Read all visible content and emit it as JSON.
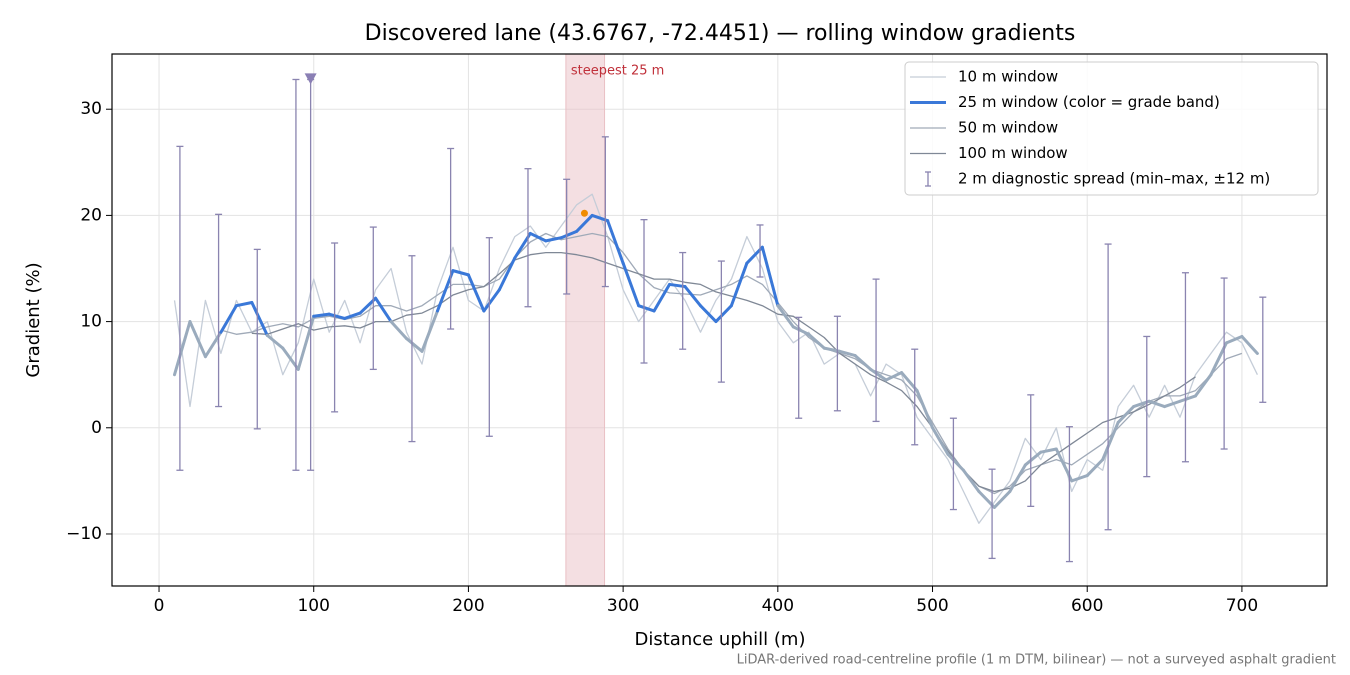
{
  "chart_data": {
    "type": "line",
    "title": "Discovered lane (43.6767, -72.4451) — rolling window gradients",
    "xlabel": "Distance uphill (m)",
    "ylabel": "Gradient (%)",
    "footnote": "LiDAR-derived road-centreline profile (1 m DTM, bilinear) — not a surveyed asphalt gradient",
    "xlim": [
      -30.4,
      755
    ],
    "ylim": [
      -14.9,
      35.2
    ],
    "xticks": [
      0,
      100,
      200,
      300,
      400,
      500,
      600,
      700
    ],
    "yticks": [
      {
        "value": -10,
        "label": "−10"
      },
      0,
      10,
      20,
      30
    ],
    "grid": true,
    "legend": "upper right",
    "x": [
      10,
      20,
      30,
      40,
      50,
      60,
      70,
      80,
      90,
      100,
      110,
      120,
      130,
      140,
      150,
      160,
      170,
      180,
      190,
      200,
      210,
      220,
      230,
      240,
      250,
      260,
      270,
      280,
      290,
      300,
      310,
      320,
      330,
      340,
      350,
      360,
      370,
      380,
      390,
      400,
      410,
      420,
      430,
      440,
      450,
      460,
      470,
      480,
      490,
      500,
      510,
      520,
      530,
      540,
      550,
      560,
      570,
      580,
      590,
      600,
      610,
      620,
      630,
      640,
      650,
      660,
      670,
      680,
      690,
      700,
      710
    ],
    "series": [
      {
        "name": "10 m window",
        "color": "#c5cdd8",
        "values": [
          12,
          2,
          12,
          7,
          12,
          9,
          10,
          5,
          8,
          14,
          9,
          12,
          8,
          13,
          15,
          9,
          6,
          13,
          17,
          12,
          11,
          15,
          18,
          19,
          17,
          19,
          21,
          22,
          18,
          13,
          10,
          12,
          14,
          12,
          9,
          12,
          14,
          18,
          15,
          10,
          8,
          9,
          6,
          7,
          6,
          3,
          6,
          5,
          1,
          -1,
          -3,
          -6,
          -9,
          -7,
          -5,
          -1,
          -3,
          0,
          -6,
          -3,
          -4,
          2,
          4,
          1,
          4,
          1,
          5,
          7,
          9,
          8,
          5
        ]
      },
      {
        "name": "25 m window (color = grade band)",
        "color": "#3a78d8",
        "values": [
          5,
          10,
          6.7,
          9,
          11.5,
          11.8,
          8.7,
          7.5,
          5.5,
          10.5,
          10.7,
          10.3,
          10.8,
          12.2,
          10,
          8.4,
          7.2,
          11,
          14.8,
          14.4,
          11,
          13,
          16,
          18.3,
          17.6,
          17.9,
          18.5,
          20,
          19.5,
          15.5,
          11.5,
          11,
          13.5,
          13.3,
          11.5,
          10,
          11.5,
          15.5,
          17,
          11.5,
          9.5,
          8.8,
          7.5,
          7.2,
          6.8,
          5.5,
          4.5,
          5.2,
          3.5,
          0,
          -2.5,
          -4,
          -6,
          -7.5,
          -6,
          -3.5,
          -2.3,
          -2,
          -5,
          -4.5,
          -3,
          0.5,
          2,
          2.5,
          2,
          2.5,
          3,
          5,
          8,
          8.6,
          7
        ],
        "colors": [
          "#9aabbd",
          "#9aabbd",
          "#9aabbd",
          "#3a78d8",
          "#3a78d8",
          "#3a78d8",
          "#9aabbd",
          "#9aabbd",
          "#9aabbd",
          "#3a78d8",
          "#3a78d8",
          "#3a78d8",
          "#3a78d8",
          "#3a78d8",
          "#9aabbd",
          "#9aabbd",
          "#9aabbd",
          "#3a78d8",
          "#3a78d8",
          "#3a78d8",
          "#3a78d8",
          "#3a78d8",
          "#3a78d8",
          "#3a78d8",
          "#3a78d8",
          "#3a78d8",
          "#3a78d8",
          "#3a78d8",
          "#3a78d8",
          "#3a78d8",
          "#3a78d8",
          "#3a78d8",
          "#3a78d8",
          "#3a78d8",
          "#3a78d8",
          "#3a78d8",
          "#3a78d8",
          "#3a78d8",
          "#3a78d8",
          "#9aabbd",
          "#9aabbd",
          "#9aabbd",
          "#9aabbd",
          "#9aabbd",
          "#9aabbd",
          "#9aabbd",
          "#9aabbd",
          "#9aabbd",
          "#9aabbd",
          "#9aabbd",
          "#9aabbd",
          "#9aabbd",
          "#9aabbd",
          "#9aabbd",
          "#9aabbd",
          "#9aabbd",
          "#9aabbd",
          "#9aabbd",
          "#9aabbd",
          "#9aabbd",
          "#9aabbd",
          "#9aabbd",
          "#9aabbd",
          "#9aabbd",
          "#9aabbd",
          "#9aabbd",
          "#9aabbd",
          "#9aabbd",
          "#9aabbd",
          "#9aabbd",
          "#9aabbd"
        ]
      },
      {
        "name": "50 m window",
        "color": "#a0aab8",
        "values": [
          null,
          null,
          null,
          9.2,
          8.8,
          9,
          9.5,
          9.8,
          9.5,
          10.3,
          10.5,
          10.2,
          10.5,
          11.5,
          11.5,
          11,
          11.5,
          12.5,
          13.5,
          13.5,
          13.3,
          14,
          16,
          17.5,
          18.3,
          17.7,
          18,
          18.3,
          18,
          16.5,
          14.5,
          13.2,
          12.7,
          12.6,
          12.5,
          13,
          13.5,
          14.3,
          13.5,
          11.8,
          10,
          8.5,
          7.5,
          7,
          6.5,
          5.5,
          5,
          4.5,
          3,
          0.5,
          -2,
          -4,
          -5.5,
          -6.2,
          -5.5,
          -4,
          -3.5,
          -3,
          -3.5,
          -2.5,
          -1.5,
          0,
          1.5,
          2.5,
          3,
          3,
          3.5,
          5,
          6.5,
          7,
          null
        ]
      },
      {
        "name": "100 m window",
        "color": "#7f8896",
        "values": [
          null,
          null,
          null,
          null,
          null,
          8.9,
          8.8,
          9.3,
          9.8,
          9.2,
          9.5,
          9.6,
          9.4,
          10,
          10,
          10.6,
          10.8,
          11.5,
          12.5,
          13,
          13.3,
          14.5,
          15.8,
          16.3,
          16.5,
          16.5,
          16.3,
          16,
          15.5,
          15,
          14.5,
          14,
          14,
          13.7,
          13.5,
          12.8,
          12.4,
          12,
          11.5,
          10.7,
          10.5,
          9.5,
          8.5,
          7,
          6,
          5,
          4.3,
          3.5,
          2,
          0,
          -2.2,
          -4,
          -5.5,
          -6,
          -5.7,
          -5,
          -3.5,
          -2.5,
          -1.5,
          -0.5,
          0.5,
          1,
          1.5,
          2.2,
          3,
          3.8,
          4.8,
          null,
          null,
          null,
          null
        ]
      }
    ],
    "spread": {
      "name": "2 m diagnostic spread (min–max, ±12 m)",
      "color": "#8a84b0",
      "x": [
        13.5,
        38.5,
        63.5,
        88.5,
        98,
        113.5,
        138.5,
        163.5,
        188.5,
        213.5,
        238.5,
        263.5,
        288.5,
        313.5,
        338.5,
        363.5,
        388.5,
        413.5,
        438.5,
        463.5,
        488.5,
        513.5,
        538.5,
        563.5,
        588.5,
        613.5,
        638.5,
        663.5,
        688.5,
        713.5
      ],
      "low": [
        -4,
        2,
        -0.1,
        -4,
        -4,
        1.5,
        5.5,
        -1.3,
        9.3,
        -0.8,
        11.4,
        12.6,
        13.3,
        6.1,
        7.4,
        4.3,
        14.2,
        0.9,
        1.6,
        0.6,
        -1.6,
        -7.7,
        -12.3,
        -7.4,
        -12.6,
        -9.6,
        -4.6,
        -3.2,
        -2,
        2.4
      ],
      "high": [
        26.5,
        20.1,
        16.8,
        32.8,
        32.8,
        17.4,
        18.9,
        16.2,
        26.3,
        17.9,
        24.4,
        23.4,
        27.4,
        19.6,
        16.5,
        15.7,
        19.1,
        10.4,
        10.5,
        14,
        7.4,
        0.9,
        -3.9,
        3.1,
        0.1,
        17.3,
        8.6,
        14.6,
        14.1,
        12.3
      ]
    },
    "highlight": {
      "label": "steepest 25 m",
      "range": [
        263,
        288
      ],
      "color": "#e9c0c5",
      "label_color": "#c0303a",
      "peak": {
        "x": 275,
        "y": 20.2,
        "color": "#f08c00"
      }
    },
    "max_marker": {
      "x": 98,
      "y": 32.9,
      "color": "#8a7fb4"
    }
  }
}
